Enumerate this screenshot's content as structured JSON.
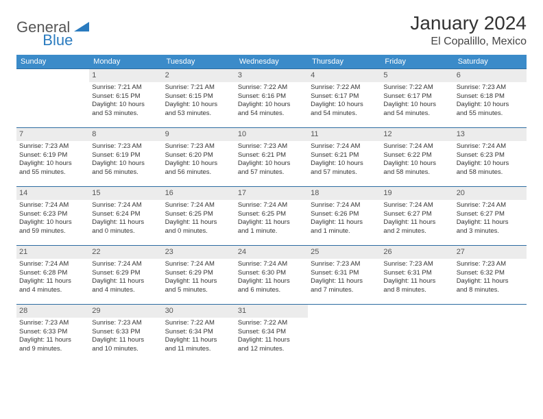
{
  "logo": {
    "part1": "General",
    "part2": "Blue"
  },
  "title": "January 2024",
  "location": "El Copalillo, Mexico",
  "colors": {
    "header_bg": "#3b8bc9",
    "header_text": "#ffffff",
    "row_border": "#2a6aa0",
    "daynum_bg": "#ececec",
    "logo_blue": "#2a7bbf"
  },
  "weekdays": [
    "Sunday",
    "Monday",
    "Tuesday",
    "Wednesday",
    "Thursday",
    "Friday",
    "Saturday"
  ],
  "weeks": [
    [
      {
        "n": "",
        "l1": "",
        "l2": "",
        "l3": "",
        "l4": ""
      },
      {
        "n": "1",
        "l1": "Sunrise: 7:21 AM",
        "l2": "Sunset: 6:15 PM",
        "l3": "Daylight: 10 hours",
        "l4": "and 53 minutes."
      },
      {
        "n": "2",
        "l1": "Sunrise: 7:21 AM",
        "l2": "Sunset: 6:15 PM",
        "l3": "Daylight: 10 hours",
        "l4": "and 53 minutes."
      },
      {
        "n": "3",
        "l1": "Sunrise: 7:22 AM",
        "l2": "Sunset: 6:16 PM",
        "l3": "Daylight: 10 hours",
        "l4": "and 54 minutes."
      },
      {
        "n": "4",
        "l1": "Sunrise: 7:22 AM",
        "l2": "Sunset: 6:17 PM",
        "l3": "Daylight: 10 hours",
        "l4": "and 54 minutes."
      },
      {
        "n": "5",
        "l1": "Sunrise: 7:22 AM",
        "l2": "Sunset: 6:17 PM",
        "l3": "Daylight: 10 hours",
        "l4": "and 54 minutes."
      },
      {
        "n": "6",
        "l1": "Sunrise: 7:23 AM",
        "l2": "Sunset: 6:18 PM",
        "l3": "Daylight: 10 hours",
        "l4": "and 55 minutes."
      }
    ],
    [
      {
        "n": "7",
        "l1": "Sunrise: 7:23 AM",
        "l2": "Sunset: 6:19 PM",
        "l3": "Daylight: 10 hours",
        "l4": "and 55 minutes."
      },
      {
        "n": "8",
        "l1": "Sunrise: 7:23 AM",
        "l2": "Sunset: 6:19 PM",
        "l3": "Daylight: 10 hours",
        "l4": "and 56 minutes."
      },
      {
        "n": "9",
        "l1": "Sunrise: 7:23 AM",
        "l2": "Sunset: 6:20 PM",
        "l3": "Daylight: 10 hours",
        "l4": "and 56 minutes."
      },
      {
        "n": "10",
        "l1": "Sunrise: 7:23 AM",
        "l2": "Sunset: 6:21 PM",
        "l3": "Daylight: 10 hours",
        "l4": "and 57 minutes."
      },
      {
        "n": "11",
        "l1": "Sunrise: 7:24 AM",
        "l2": "Sunset: 6:21 PM",
        "l3": "Daylight: 10 hours",
        "l4": "and 57 minutes."
      },
      {
        "n": "12",
        "l1": "Sunrise: 7:24 AM",
        "l2": "Sunset: 6:22 PM",
        "l3": "Daylight: 10 hours",
        "l4": "and 58 minutes."
      },
      {
        "n": "13",
        "l1": "Sunrise: 7:24 AM",
        "l2": "Sunset: 6:23 PM",
        "l3": "Daylight: 10 hours",
        "l4": "and 58 minutes."
      }
    ],
    [
      {
        "n": "14",
        "l1": "Sunrise: 7:24 AM",
        "l2": "Sunset: 6:23 PM",
        "l3": "Daylight: 10 hours",
        "l4": "and 59 minutes."
      },
      {
        "n": "15",
        "l1": "Sunrise: 7:24 AM",
        "l2": "Sunset: 6:24 PM",
        "l3": "Daylight: 11 hours",
        "l4": "and 0 minutes."
      },
      {
        "n": "16",
        "l1": "Sunrise: 7:24 AM",
        "l2": "Sunset: 6:25 PM",
        "l3": "Daylight: 11 hours",
        "l4": "and 0 minutes."
      },
      {
        "n": "17",
        "l1": "Sunrise: 7:24 AM",
        "l2": "Sunset: 6:25 PM",
        "l3": "Daylight: 11 hours",
        "l4": "and 1 minute."
      },
      {
        "n": "18",
        "l1": "Sunrise: 7:24 AM",
        "l2": "Sunset: 6:26 PM",
        "l3": "Daylight: 11 hours",
        "l4": "and 1 minute."
      },
      {
        "n": "19",
        "l1": "Sunrise: 7:24 AM",
        "l2": "Sunset: 6:27 PM",
        "l3": "Daylight: 11 hours",
        "l4": "and 2 minutes."
      },
      {
        "n": "20",
        "l1": "Sunrise: 7:24 AM",
        "l2": "Sunset: 6:27 PM",
        "l3": "Daylight: 11 hours",
        "l4": "and 3 minutes."
      }
    ],
    [
      {
        "n": "21",
        "l1": "Sunrise: 7:24 AM",
        "l2": "Sunset: 6:28 PM",
        "l3": "Daylight: 11 hours",
        "l4": "and 4 minutes."
      },
      {
        "n": "22",
        "l1": "Sunrise: 7:24 AM",
        "l2": "Sunset: 6:29 PM",
        "l3": "Daylight: 11 hours",
        "l4": "and 4 minutes."
      },
      {
        "n": "23",
        "l1": "Sunrise: 7:24 AM",
        "l2": "Sunset: 6:29 PM",
        "l3": "Daylight: 11 hours",
        "l4": "and 5 minutes."
      },
      {
        "n": "24",
        "l1": "Sunrise: 7:24 AM",
        "l2": "Sunset: 6:30 PM",
        "l3": "Daylight: 11 hours",
        "l4": "and 6 minutes."
      },
      {
        "n": "25",
        "l1": "Sunrise: 7:23 AM",
        "l2": "Sunset: 6:31 PM",
        "l3": "Daylight: 11 hours",
        "l4": "and 7 minutes."
      },
      {
        "n": "26",
        "l1": "Sunrise: 7:23 AM",
        "l2": "Sunset: 6:31 PM",
        "l3": "Daylight: 11 hours",
        "l4": "and 8 minutes."
      },
      {
        "n": "27",
        "l1": "Sunrise: 7:23 AM",
        "l2": "Sunset: 6:32 PM",
        "l3": "Daylight: 11 hours",
        "l4": "and 8 minutes."
      }
    ],
    [
      {
        "n": "28",
        "l1": "Sunrise: 7:23 AM",
        "l2": "Sunset: 6:33 PM",
        "l3": "Daylight: 11 hours",
        "l4": "and 9 minutes."
      },
      {
        "n": "29",
        "l1": "Sunrise: 7:23 AM",
        "l2": "Sunset: 6:33 PM",
        "l3": "Daylight: 11 hours",
        "l4": "and 10 minutes."
      },
      {
        "n": "30",
        "l1": "Sunrise: 7:22 AM",
        "l2": "Sunset: 6:34 PM",
        "l3": "Daylight: 11 hours",
        "l4": "and 11 minutes."
      },
      {
        "n": "31",
        "l1": "Sunrise: 7:22 AM",
        "l2": "Sunset: 6:34 PM",
        "l3": "Daylight: 11 hours",
        "l4": "and 12 minutes."
      },
      {
        "n": "",
        "l1": "",
        "l2": "",
        "l3": "",
        "l4": ""
      },
      {
        "n": "",
        "l1": "",
        "l2": "",
        "l3": "",
        "l4": ""
      },
      {
        "n": "",
        "l1": "",
        "l2": "",
        "l3": "",
        "l4": ""
      }
    ]
  ]
}
